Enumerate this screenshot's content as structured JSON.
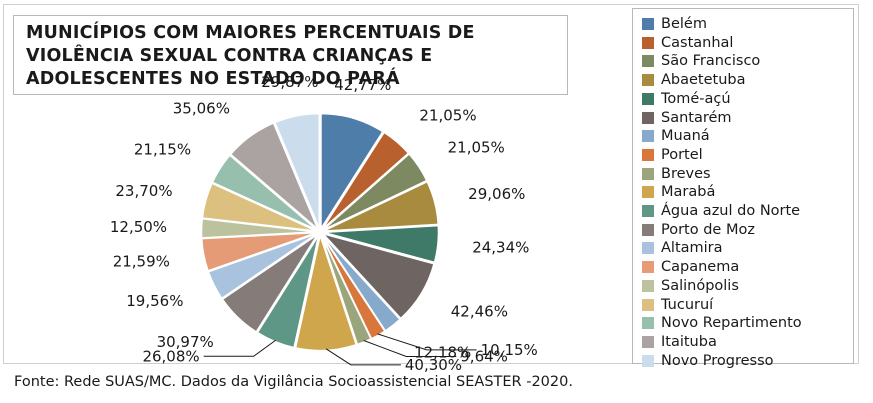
{
  "chart_data": {
    "type": "pie",
    "title": [
      "MUNICÍPIOS COM MAIORES PERCENTUAIS DE",
      "VIOLÊNCIA SEXUAL CONTRA CRIANÇAS E",
      "ADOLESCENTES NO ESTADO DO PARÁ"
    ],
    "legend_position": "right",
    "slices": [
      {
        "name": "Belém",
        "label": "42,77%",
        "value": 42.77,
        "color": "#4f7daa"
      },
      {
        "name": "Castanhal",
        "label": "21,05%",
        "value": 21.05,
        "color": "#b9602f"
      },
      {
        "name": "São Francisco",
        "label": "21,05%",
        "value": 21.05,
        "color": "#7d8a61"
      },
      {
        "name": "Abaetetuba",
        "label": "29,06%",
        "value": 29.06,
        "color": "#a88b3f"
      },
      {
        "name": "Tomé-açú",
        "label": "24,34%",
        "value": 24.34,
        "color": "#3e7a67"
      },
      {
        "name": "Santarém",
        "label": "42,46%",
        "value": 42.46,
        "color": "#6e6462"
      },
      {
        "name": "Muaná",
        "label": "12,18%",
        "value": 12.18,
        "color": "#86a9cc"
      },
      {
        "name": "Portel",
        "label": "10,15%",
        "value": 10.15,
        "color": "#d9763c"
      },
      {
        "name": "Breves",
        "label": "9,64%",
        "value": 9.64,
        "color": "#9aa57c"
      },
      {
        "name": "Marabá",
        "label": "40,30%",
        "value": 40.3,
        "color": "#cfa64b"
      },
      {
        "name": "Água azul do Norte",
        "label": "26,08%",
        "value": 26.08,
        "color": "#5e9785"
      },
      {
        "name": "Porto de Moz",
        "label": "30,97%",
        "value": 30.97,
        "color": "#857c79"
      },
      {
        "name": "Altamira",
        "label": "19,56%",
        "value": 19.56,
        "color": "#a9c3de"
      },
      {
        "name": "Capanema",
        "label": "21,59%",
        "value": 21.59,
        "color": "#e59c76"
      },
      {
        "name": "Salinópolis",
        "label": "12,50%",
        "value": 12.5,
        "color": "#bcc29e"
      },
      {
        "name": "Tucuruí",
        "label": "23,70%",
        "value": 23.7,
        "color": "#dcc07f"
      },
      {
        "name": "Novo Repartimento",
        "label": "21,15%",
        "value": 21.15,
        "color": "#96bfae"
      },
      {
        "name": "Itaituba",
        "label": "35,06%",
        "value": 35.06,
        "color": "#aaa3a1"
      },
      {
        "name": "Novo Progresso",
        "label": "29,87%",
        "value": 29.87,
        "color": "#cbdcec"
      }
    ]
  },
  "source": "Fonte: Rede SUAS/MC. Dados da Vigilância Socioassistencial SEASTER -2020."
}
